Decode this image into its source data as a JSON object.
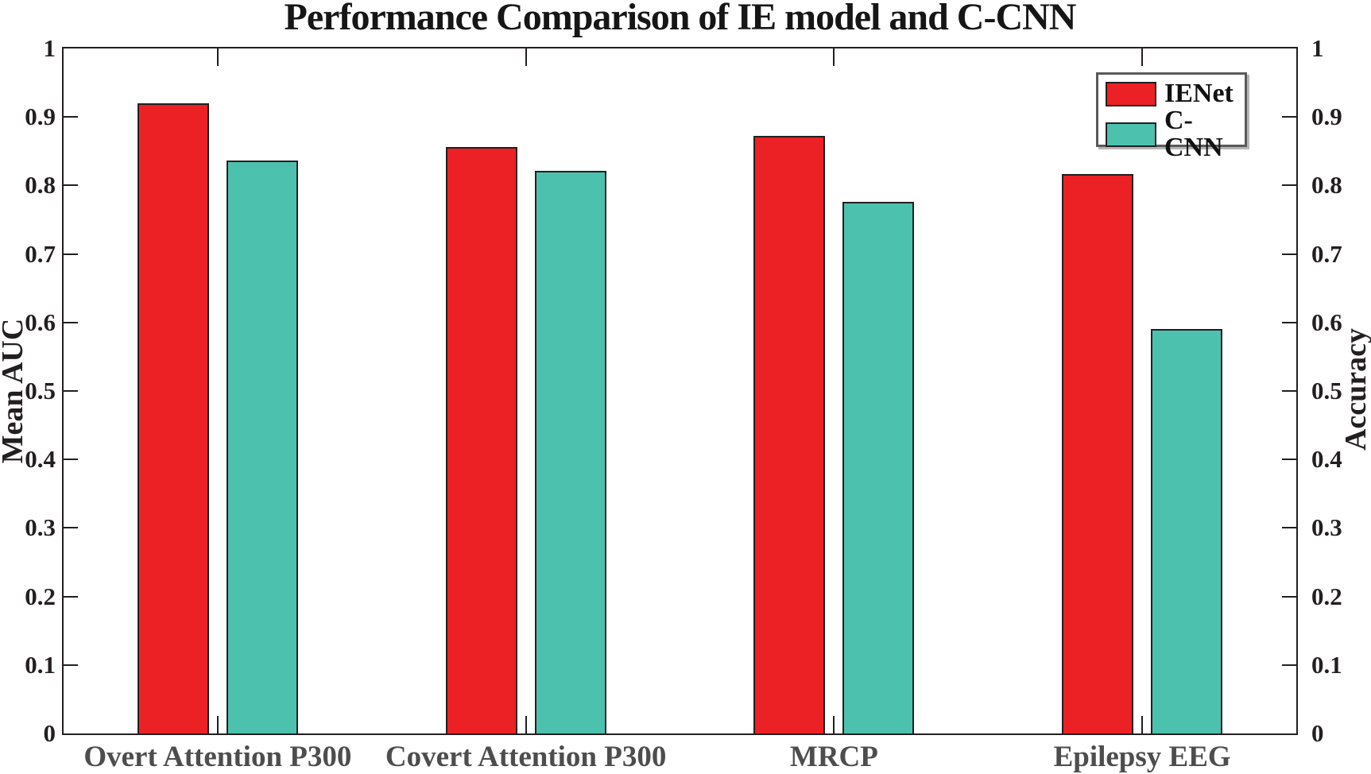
{
  "chart_data": {
    "type": "bar",
    "title": "Performance Comparison of IE model and C-CNN",
    "ylabel_left": "Mean AUC",
    "ylabel_right": "Accuracy",
    "xlabel": "",
    "ylim": [
      0,
      1
    ],
    "grid": false,
    "legend_position": "top-right-inside",
    "categories": [
      "Overt Attention P300",
      "Covert Attention P300",
      "MRCP",
      "Epilepsy EEG"
    ],
    "series": [
      {
        "name": "IENet",
        "color": "#EC2125",
        "values": [
          0.92,
          0.856,
          0.872,
          0.817
        ]
      },
      {
        "name": "C-CNN",
        "color": "#4CC1AE",
        "values": [
          0.837,
          0.821,
          0.776,
          0.591
        ]
      }
    ],
    "yticks": {
      "values": [
        0,
        0.1,
        0.2,
        0.3,
        0.4,
        0.5,
        0.6,
        0.7,
        0.8,
        0.9,
        1
      ],
      "labels": [
        "0",
        "0.1",
        "0.2",
        "0.3",
        "0.4",
        "0.5",
        "0.6",
        "0.7",
        "0.8",
        "0.9",
        "1"
      ]
    },
    "colors": {
      "axis": "#231F20",
      "bar_edge": "#231F20",
      "tick_label": "#231F20",
      "category_label": "#4D4D4D",
      "title": "#161616",
      "background": "#FFFFFF"
    }
  }
}
